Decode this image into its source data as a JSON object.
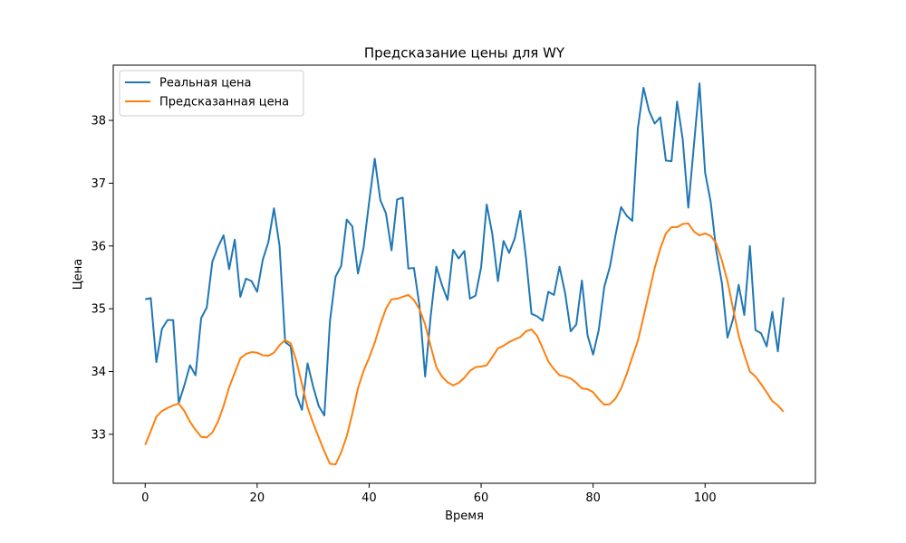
{
  "chart_data": {
    "type": "line",
    "title": "Предсказание цены для WY",
    "xlabel": "Время",
    "ylabel": "Цена",
    "xlim": [
      -5.7,
      119.7
    ],
    "ylim": [
      32.22,
      38.88
    ],
    "xticks": [
      0,
      20,
      40,
      60,
      80,
      100
    ],
    "yticks": [
      33,
      34,
      35,
      36,
      37,
      38
    ],
    "grid": false,
    "legend_position": "top-left",
    "series": [
      {
        "name": "Реальная цена",
        "color": "#1f77b4",
        "x": [
          0,
          1,
          2,
          3,
          4,
          5,
          6,
          7,
          8,
          9,
          10,
          11,
          12,
          13,
          14,
          15,
          16,
          17,
          18,
          19,
          20,
          21,
          22,
          23,
          24,
          25,
          26,
          27,
          28,
          29,
          30,
          31,
          32,
          33,
          34,
          35,
          36,
          37,
          38,
          39,
          40,
          41,
          42,
          43,
          44,
          45,
          46,
          47,
          48,
          49,
          50,
          51,
          52,
          53,
          54,
          55,
          56,
          57,
          58,
          59,
          60,
          61,
          62,
          63,
          64,
          65,
          66,
          67,
          68,
          69,
          70,
          71,
          72,
          73,
          74,
          75,
          76,
          77,
          78,
          79,
          80,
          81,
          82,
          83,
          84,
          85,
          86,
          87,
          88,
          89,
          90,
          91,
          92,
          93,
          94,
          95,
          96,
          97,
          98,
          99,
          100,
          101,
          102,
          103,
          104,
          105,
          106,
          107,
          108,
          109,
          110,
          111,
          112,
          113,
          114
        ],
        "values": [
          35.15,
          35.17,
          34.15,
          34.68,
          34.82,
          34.82,
          33.5,
          33.78,
          34.1,
          33.94,
          34.85,
          35.02,
          35.75,
          35.98,
          36.17,
          35.63,
          36.1,
          35.19,
          35.48,
          35.44,
          35.27,
          35.78,
          36.06,
          36.6,
          36.0,
          34.47,
          34.4,
          33.63,
          33.39,
          34.13,
          33.76,
          33.45,
          33.3,
          34.8,
          35.51,
          35.68,
          36.42,
          36.31,
          35.56,
          35.97,
          36.7,
          37.39,
          36.73,
          36.52,
          35.93,
          36.74,
          36.77,
          35.64,
          35.65,
          35.04,
          33.92,
          34.89,
          35.67,
          35.38,
          35.14,
          35.94,
          35.8,
          35.92,
          35.16,
          35.21,
          35.66,
          36.66,
          36.19,
          35.44,
          36.08,
          35.89,
          36.12,
          36.56,
          35.82,
          34.92,
          34.88,
          34.81,
          35.27,
          35.22,
          35.67,
          35.25,
          34.64,
          34.75,
          35.45,
          34.58,
          34.27,
          34.66,
          35.35,
          35.67,
          36.17,
          36.62,
          36.48,
          36.4,
          37.88,
          38.52,
          38.15,
          37.95,
          38.05,
          37.36,
          37.35,
          38.3,
          37.7,
          36.61,
          37.6,
          38.59,
          37.17,
          36.7,
          35.92,
          35.41,
          34.54,
          34.84,
          35.38,
          34.9,
          36.0,
          34.66,
          34.61,
          34.4,
          34.95,
          34.32,
          35.18
        ]
      },
      {
        "name": "Предсказанная цена",
        "color": "#ff7f0e",
        "x": [
          0,
          1,
          2,
          3,
          4,
          5,
          6,
          7,
          8,
          9,
          10,
          11,
          12,
          13,
          14,
          15,
          16,
          17,
          18,
          19,
          20,
          21,
          22,
          23,
          24,
          25,
          26,
          27,
          28,
          29,
          30,
          31,
          32,
          33,
          34,
          35,
          36,
          37,
          38,
          39,
          40,
          41,
          42,
          43,
          44,
          45,
          46,
          47,
          48,
          49,
          50,
          51,
          52,
          53,
          54,
          55,
          56,
          57,
          58,
          59,
          60,
          61,
          62,
          63,
          64,
          65,
          66,
          67,
          68,
          69,
          70,
          71,
          72,
          73,
          74,
          75,
          76,
          77,
          78,
          79,
          80,
          81,
          82,
          83,
          84,
          85,
          86,
          87,
          88,
          89,
          90,
          91,
          92,
          93,
          94,
          95,
          96,
          97,
          98,
          99,
          100,
          101,
          102,
          103,
          104,
          105,
          106,
          107,
          108,
          109,
          110,
          111,
          112,
          113,
          114
        ],
        "values": [
          32.83,
          33.05,
          33.28,
          33.37,
          33.42,
          33.46,
          33.49,
          33.37,
          33.2,
          33.07,
          32.96,
          32.95,
          33.03,
          33.2,
          33.45,
          33.75,
          33.98,
          34.21,
          34.28,
          34.31,
          34.3,
          34.26,
          34.25,
          34.3,
          34.42,
          34.5,
          34.45,
          34.17,
          33.8,
          33.43,
          33.18,
          32.95,
          32.73,
          32.53,
          32.52,
          32.71,
          32.97,
          33.33,
          33.73,
          34.01,
          34.22,
          34.46,
          34.75,
          35.0,
          35.15,
          35.16,
          35.19,
          35.22,
          35.14,
          34.99,
          34.75,
          34.4,
          34.07,
          33.92,
          33.83,
          33.78,
          33.82,
          33.9,
          34.01,
          34.07,
          34.08,
          34.1,
          34.23,
          34.37,
          34.41,
          34.47,
          34.51,
          34.55,
          34.64,
          34.67,
          34.57,
          34.37,
          34.16,
          34.04,
          33.94,
          33.92,
          33.89,
          33.82,
          33.73,
          33.72,
          33.67,
          33.56,
          33.47,
          33.48,
          33.57,
          33.73,
          33.96,
          34.23,
          34.49,
          34.87,
          35.26,
          35.65,
          35.96,
          36.2,
          36.3,
          36.3,
          36.35,
          36.36,
          36.23,
          36.17,
          36.2,
          36.16,
          36.04,
          35.77,
          35.44,
          35.0,
          34.57,
          34.27,
          34.0,
          33.92,
          33.8,
          33.67,
          33.53,
          33.46,
          33.36
        ]
      }
    ]
  }
}
